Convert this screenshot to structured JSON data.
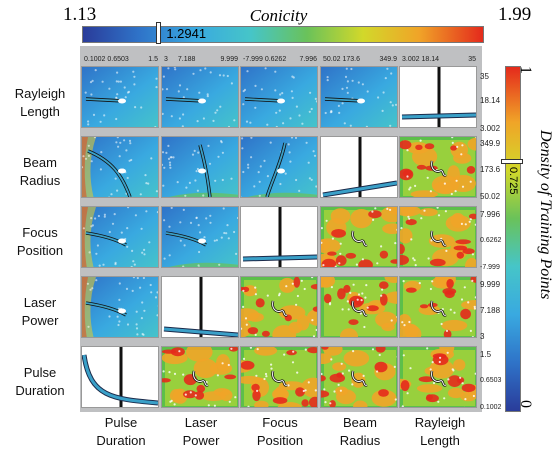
{
  "conicity_bar": {
    "title": "Conicity",
    "min": "1.13",
    "max": "1.99",
    "value": "1.2941",
    "value_num": 1.2941
  },
  "density_bar": {
    "title": "Density of Training Points",
    "min": "0",
    "max": "1",
    "value": "0.725",
    "value_num": 0.725
  },
  "variables": [
    {
      "name": "Pulse Duration",
      "label_line1": "Pulse",
      "label_line2": "Duration",
      "ticks": [
        "0.1002",
        "0.6503",
        "1.5"
      ]
    },
    {
      "name": "Laser Power",
      "label_line1": "Laser",
      "label_line2": "Power",
      "ticks": [
        "3",
        "7.188",
        "9.999"
      ]
    },
    {
      "name": "Focus Position",
      "label_line1": "Focus",
      "label_line2": "Position",
      "ticks": [
        "-7.999",
        "0.6262",
        "7.996"
      ]
    },
    {
      "name": "Beam Radius",
      "label_line1": "Beam",
      "label_line2": "Radius",
      "ticks": [
        "50.02",
        "173.6",
        "349.9"
      ]
    },
    {
      "name": "Rayleigh Length",
      "label_line1": "Rayleigh",
      "label_line2": "Length",
      "ticks": [
        "3.002",
        "18.14",
        "35"
      ]
    }
  ],
  "colors": {
    "low": "#2a3c9a",
    "mid": "#6ac25a",
    "high": "#e42a1c",
    "panel_bg": "#bfc0c2"
  },
  "chart_data": {
    "type": "heatmap",
    "layout": "scatterplot-matrix",
    "rows_top_to_bottom": [
      "Rayleigh Length",
      "Beam Radius",
      "Focus Position",
      "Laser Power",
      "Pulse Duration"
    ],
    "columns_left_to_right": [
      "Pulse Duration",
      "Laser Power",
      "Focus Position",
      "Beam Radius",
      "Rayleigh Length"
    ],
    "lower_left_triangle": "Conicity contour maps (color scale 1.13 to 1.99)",
    "upper_right_triangle": "Density of training points (color scale 0 to 1)",
    "diagonal": "Conicity vs variable line plots",
    "selected_conicity": 1.2941,
    "selected_density": 0.725
  }
}
